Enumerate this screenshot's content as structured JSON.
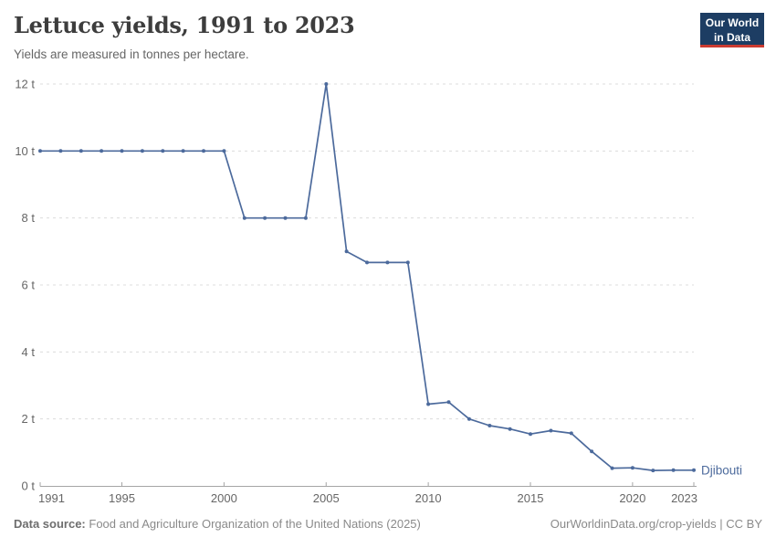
{
  "header": {
    "title": "Lettuce yields, 1991 to 2023",
    "subtitle": "Yields are measured in tonnes per hectare.",
    "logo": {
      "line1": "Our World",
      "line2": "in Data"
    }
  },
  "chart_data": {
    "type": "line",
    "title": "Lettuce yields, 1991 to 2023",
    "ylabel": "tonnes per hectare",
    "unit_suffix": " t",
    "xlim": [
      1991,
      2023
    ],
    "ylim": [
      0,
      12
    ],
    "grid": true,
    "x_ticks": [
      1991,
      1995,
      2000,
      2005,
      2010,
      2015,
      2020,
      2023
    ],
    "y_ticks": [
      0,
      2,
      4,
      6,
      8,
      10,
      12
    ],
    "x": [
      1991,
      1992,
      1993,
      1994,
      1995,
      1996,
      1997,
      1998,
      1999,
      2000,
      2001,
      2002,
      2003,
      2004,
      2005,
      2006,
      2007,
      2008,
      2009,
      2010,
      2011,
      2012,
      2013,
      2014,
      2015,
      2016,
      2017,
      2018,
      2019,
      2020,
      2021,
      2022,
      2023
    ],
    "series": [
      {
        "name": "Djibouti",
        "color": "#4C6A9C",
        "values": [
          10,
          10,
          10,
          10,
          10,
          10,
          10,
          10,
          10,
          10,
          8,
          8,
          8,
          8,
          12,
          7,
          6.67,
          6.67,
          6.67,
          2.44,
          2.5,
          2,
          1.8,
          1.7,
          1.55,
          1.65,
          1.57,
          1.03,
          0.53,
          0.54,
          0.46,
          0.47,
          0.47
        ]
      }
    ],
    "legend_position": "end-of-line-label"
  },
  "colors": {
    "line": "#4C6A9C",
    "grid": "#dcdcdc",
    "axis": "#a5a5a5",
    "tick_label": "#666666"
  },
  "footer": {
    "source_label": "Data source:",
    "source_text": "Food and Agriculture Organization of the United Nations (2025)",
    "link": "OurWorldinData.org/crop-yields",
    "separator": "|",
    "license": "CC BY"
  }
}
